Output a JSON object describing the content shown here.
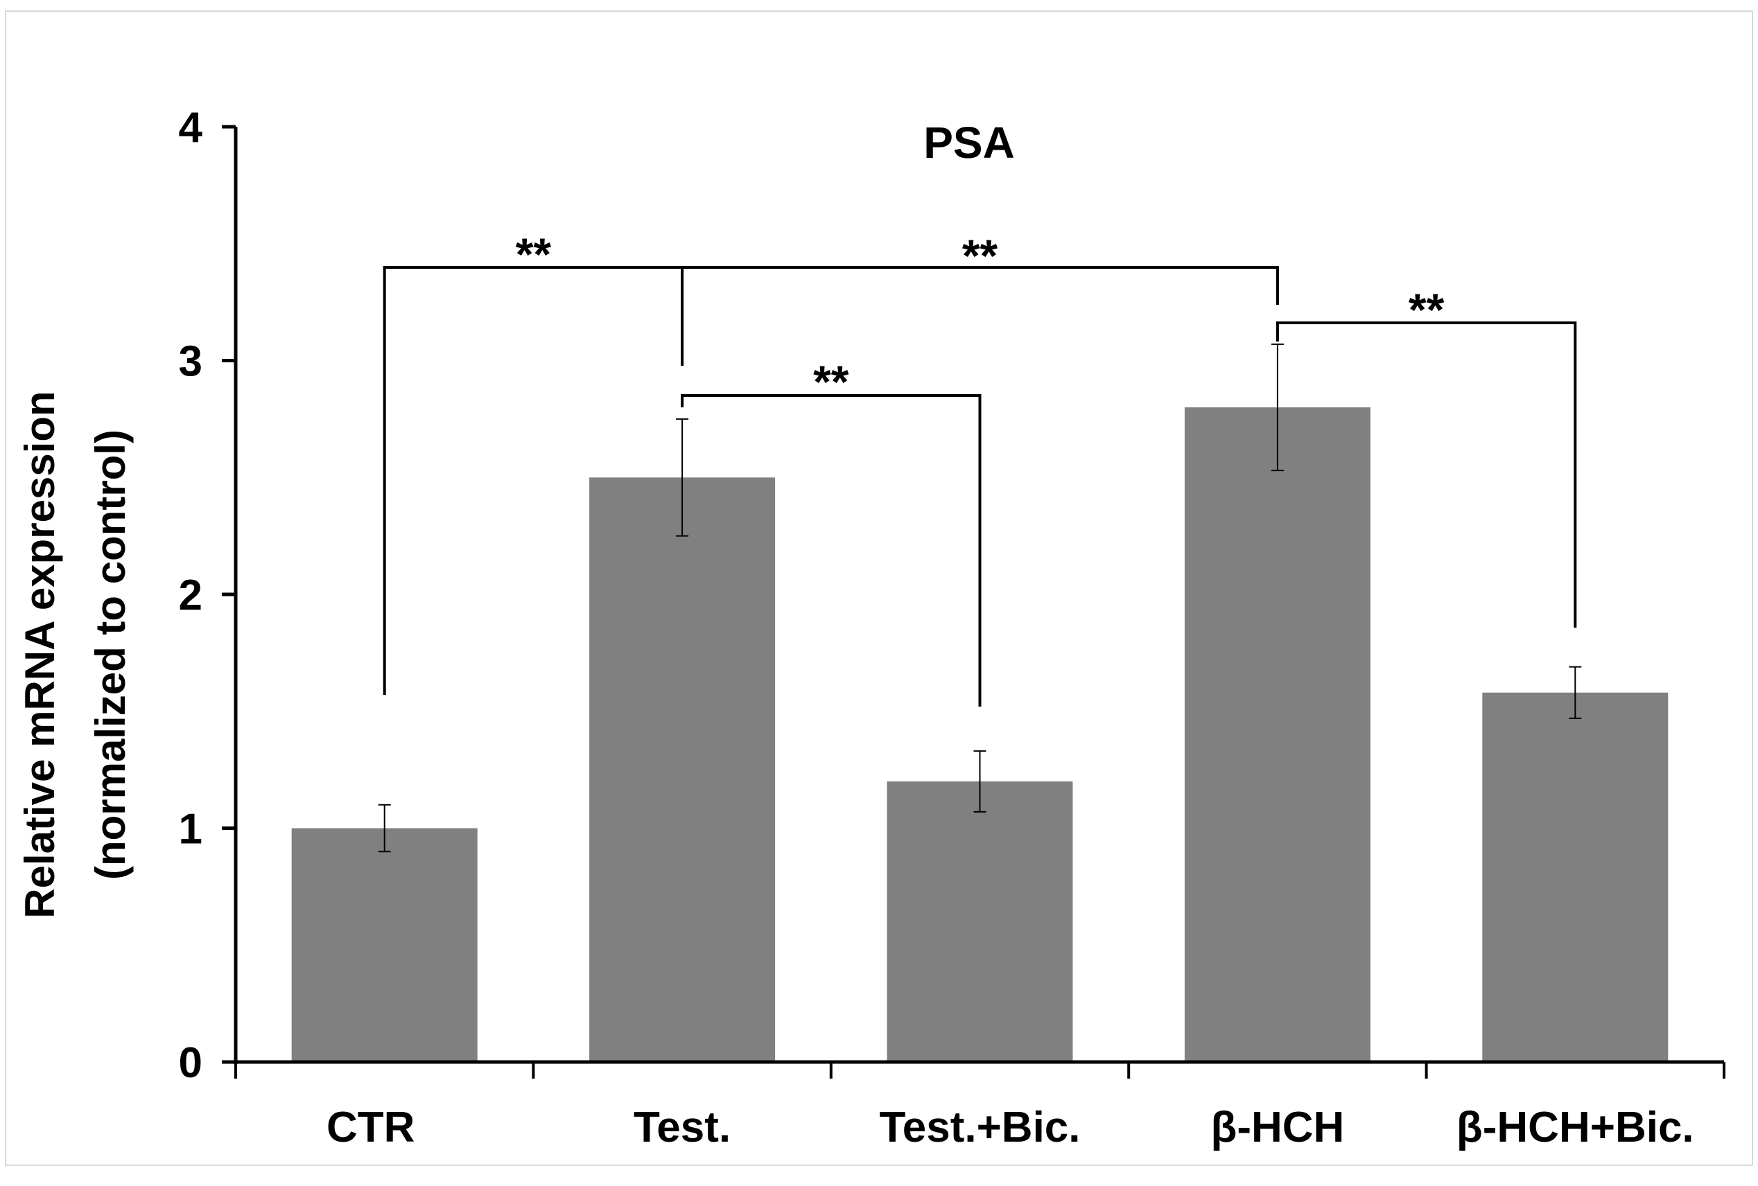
{
  "chart_data": {
    "type": "bar",
    "title": "PSA",
    "ylabel_line1": "Relative mRNA expression",
    "ylabel_line2": "(normalized to control)",
    "xlabel": "",
    "ylim": [
      0,
      4
    ],
    "yticks": [
      "0",
      "1",
      "2",
      "3",
      "4"
    ],
    "categories": [
      "CTR",
      "Test.",
      "Test.+Bic.",
      "β-HCH",
      "β-HCH+Bic."
    ],
    "values": [
      1.0,
      2.5,
      1.2,
      2.8,
      1.58
    ],
    "errors": [
      0.1,
      0.25,
      0.13,
      0.27,
      0.11
    ],
    "bar_color": "#808080",
    "significance": [
      {
        "label": "**",
        "type": "Test. vs CTR"
      },
      {
        "label": "**",
        "type": "Test. vs β-HCH"
      },
      {
        "label": "**",
        "type": "Test. vs Test.+Bic."
      },
      {
        "label": "**",
        "type": "β-HCH vs β-HCH+Bic."
      }
    ]
  }
}
